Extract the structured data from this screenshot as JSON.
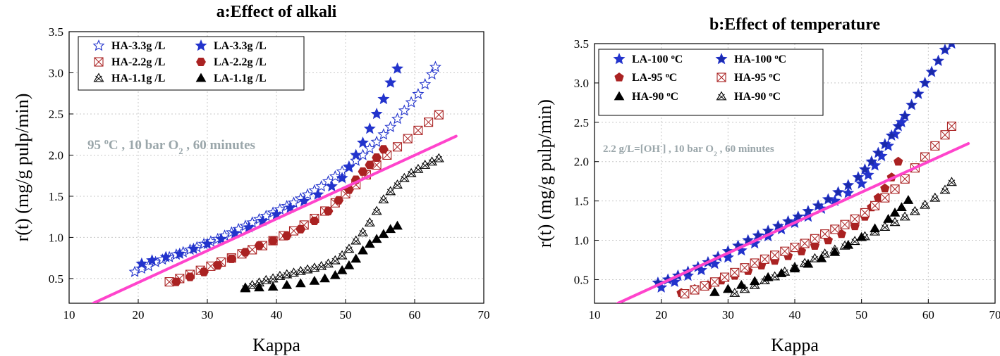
{
  "chart_data": [
    {
      "type": "scatter",
      "title": "a:Effect of alkali",
      "xlabel": "Kappa",
      "ylabel": "r(t) (mg/g pulp/min)",
      "xlim": [
        10,
        70
      ],
      "ylim": [
        0.2,
        3.5
      ],
      "xticks": [
        10,
        20,
        30,
        40,
        50,
        60,
        70
      ],
      "yticks": [
        0.5,
        1.0,
        1.5,
        2.0,
        2.5,
        3.0,
        3.5
      ],
      "grid": true,
      "legend_position": "top-left",
      "annotation": {
        "prefix": "95 ",
        "sup": "o",
        "mid": "C , 10 bar O",
        "sub": "2",
        "suffix": " , 60 minutes"
      },
      "trend_line": {
        "x": [
          13.5,
          66
        ],
        "y": [
          0.2,
          2.23
        ],
        "color": "#ff44cc"
      },
      "series": [
        {
          "name": "HA-3.3g /L",
          "marker": "star-open",
          "color": "#2233cc",
          "x": [
            19.5,
            20.5,
            21.5,
            22.5,
            23.5,
            24.5,
            25.5,
            26.5,
            27.5,
            28.5,
            29.5,
            30.5,
            31.5,
            32.5,
            33.5,
            34.5,
            35.5,
            36.5,
            37.5,
            38.5,
            39.5,
            40.5,
            41.5,
            42.5,
            43.5,
            44.5,
            45.5,
            46.5,
            47.5,
            48.5,
            49.5,
            50.5,
            51.5,
            52.5,
            53.5,
            54.5,
            55.5,
            56.5,
            57.5,
            58.5,
            59.5,
            60.5,
            61.5,
            62.5,
            63.0
          ],
          "y": [
            0.58,
            0.62,
            0.65,
            0.7,
            0.73,
            0.76,
            0.79,
            0.82,
            0.85,
            0.88,
            0.92,
            0.95,
            0.98,
            1.02,
            1.06,
            1.1,
            1.14,
            1.18,
            1.22,
            1.26,
            1.3,
            1.34,
            1.38,
            1.42,
            1.47,
            1.52,
            1.57,
            1.62,
            1.68,
            1.74,
            1.8,
            1.86,
            1.93,
            2.0,
            2.08,
            2.16,
            2.25,
            2.34,
            2.44,
            2.54,
            2.64,
            2.74,
            2.86,
            2.98,
            3.07
          ]
        },
        {
          "name": "LA-3.3g /L",
          "marker": "star",
          "color": "#2233cc",
          "x": [
            20.5,
            22,
            24,
            26,
            28,
            30,
            32,
            34,
            36,
            38,
            40,
            42,
            44,
            46,
            48,
            49.5,
            50.5,
            51.5,
            52.5,
            53.5,
            54.5,
            55.5,
            56.5,
            57.5
          ],
          "y": [
            0.68,
            0.72,
            0.76,
            0.8,
            0.86,
            0.92,
            0.98,
            1.05,
            1.12,
            1.2,
            1.28,
            1.36,
            1.44,
            1.52,
            1.62,
            1.72,
            1.85,
            2.0,
            2.15,
            2.32,
            2.5,
            2.68,
            2.88,
            3.05
          ]
        },
        {
          "name": "HA-2.2g /L",
          "marker": "square-x",
          "color": "#aa2222",
          "x": [
            24.5,
            26,
            27.5,
            29,
            30.5,
            32,
            33.5,
            35,
            36.5,
            38,
            39.5,
            41,
            42.5,
            44,
            45.5,
            47,
            48.5,
            50,
            51.5,
            53,
            54.5,
            56,
            57.5,
            59,
            60.5,
            62,
            63.5
          ],
          "y": [
            0.46,
            0.5,
            0.55,
            0.6,
            0.65,
            0.7,
            0.75,
            0.8,
            0.85,
            0.9,
            0.96,
            1.02,
            1.08,
            1.15,
            1.23,
            1.32,
            1.42,
            1.53,
            1.64,
            1.76,
            1.88,
            2.0,
            2.1,
            2.2,
            2.3,
            2.4,
            2.49
          ]
        },
        {
          "name": "LA-2.2g /L",
          "marker": "hexagon",
          "color": "#aa2222",
          "x": [
            25.5,
            27.5,
            29.5,
            31.5,
            33.5,
            35.5,
            37.5,
            39.5,
            41.5,
            43.5,
            45.5,
            47.5,
            49,
            50.5,
            51.5,
            52.5,
            53.5,
            54.5,
            55.5
          ],
          "y": [
            0.46,
            0.52,
            0.58,
            0.66,
            0.74,
            0.82,
            0.9,
            0.96,
            1.02,
            1.1,
            1.2,
            1.32,
            1.45,
            1.58,
            1.7,
            1.8,
            1.88,
            1.97,
            2.07
          ]
        },
        {
          "name": "HA-1.1g /L",
          "marker": "triangle-x",
          "color": "#000000",
          "x": [
            35.5,
            36.5,
            37.5,
            38.5,
            39.5,
            40.5,
            41.5,
            42.5,
            43.5,
            44.5,
            45.5,
            46.5,
            47.5,
            48.5,
            49.5,
            50.5,
            51.5,
            52.5,
            53.5,
            54.5,
            55.5,
            56.5,
            57.5,
            58.5,
            59.5,
            60.5,
            61.5,
            62.5,
            63.5
          ],
          "y": [
            0.39,
            0.42,
            0.45,
            0.48,
            0.5,
            0.53,
            0.55,
            0.57,
            0.59,
            0.61,
            0.63,
            0.65,
            0.68,
            0.72,
            0.78,
            0.86,
            0.96,
            1.06,
            1.18,
            1.32,
            1.46,
            1.56,
            1.64,
            1.72,
            1.78,
            1.83,
            1.88,
            1.92,
            1.96
          ]
        },
        {
          "name": "LA-1.1g /L",
          "marker": "triangle",
          "color": "#000000",
          "x": [
            35.5,
            37.5,
            39.5,
            41.5,
            43.5,
            45.5,
            47,
            48.5,
            49.5,
            50.5,
            51.5,
            52.5,
            53.5,
            54.5,
            55.5,
            56.5,
            57.5
          ],
          "y": [
            0.38,
            0.39,
            0.4,
            0.42,
            0.44,
            0.47,
            0.5,
            0.54,
            0.6,
            0.66,
            0.74,
            0.84,
            0.92,
            0.98,
            1.04,
            1.1,
            1.14
          ]
        }
      ]
    },
    {
      "type": "scatter",
      "title": "b:Effect of temperature",
      "xlabel": "Kappa",
      "ylabel": "r(t) (mg/g pulp/min)",
      "xlim": [
        10,
        70
      ],
      "ylim": [
        0.2,
        3.5
      ],
      "xticks": [
        10,
        20,
        30,
        40,
        50,
        60,
        70
      ],
      "yticks": [
        0.5,
        1.0,
        1.5,
        2.0,
        2.5,
        3.0,
        3.5
      ],
      "grid": true,
      "legend_position": "top-left",
      "annotation": {
        "prefix": "2.2 g/L=[OH",
        "sup": "-",
        "mid": "] , 10 bar O",
        "sub": "2",
        "suffix": " , 60 minutes"
      },
      "trend_line": {
        "x": [
          13.5,
          66
        ],
        "y": [
          0.2,
          2.23
        ],
        "color": "#ff44cc"
      },
      "series": [
        {
          "name": "LA-100 °C",
          "label_parts": [
            "LA-100 ",
            "o",
            "C"
          ],
          "marker": "star",
          "color": "#2233cc",
          "x": [
            20,
            22,
            24,
            26,
            28,
            30,
            32,
            34,
            36,
            38,
            40,
            42,
            44,
            46,
            48,
            50,
            51,
            52,
            53,
            54,
            55,
            56
          ],
          "y": [
            0.4,
            0.47,
            0.55,
            0.62,
            0.7,
            0.78,
            0.87,
            0.96,
            1.05,
            1.14,
            1.22,
            1.3,
            1.4,
            1.5,
            1.6,
            1.72,
            1.83,
            1.95,
            2.07,
            2.2,
            2.35,
            2.5
          ]
        },
        {
          "name": "HA-100 °C",
          "label_parts": [
            "HA-100 ",
            "o",
            "C"
          ],
          "marker": "star-dark",
          "color": "#2233cc",
          "x": [
            19.5,
            21,
            22.5,
            24,
            25.5,
            27,
            28.5,
            30,
            31.5,
            33,
            34.5,
            36,
            37.5,
            39,
            40.5,
            42,
            43.5,
            45,
            46.5,
            48,
            49.5,
            50.5,
            51.5,
            52.5,
            53.5,
            54.5,
            55.5,
            56.5,
            57.5,
            58.5,
            59.5,
            60.5,
            61.5,
            62.5,
            63.5
          ],
          "y": [
            0.46,
            0.5,
            0.55,
            0.6,
            0.66,
            0.72,
            0.79,
            0.86,
            0.93,
            1.0,
            1.06,
            1.12,
            1.18,
            1.24,
            1.3,
            1.37,
            1.44,
            1.52,
            1.61,
            1.7,
            1.8,
            1.9,
            2.0,
            2.11,
            2.22,
            2.33,
            2.45,
            2.58,
            2.72,
            2.86,
            3.0,
            3.14,
            3.28,
            3.42,
            3.5
          ]
        },
        {
          "name": "LA-95 °C",
          "label_parts": [
            "LA-95 ",
            "o",
            "C"
          ],
          "marker": "pentagon",
          "color": "#aa2222",
          "x": [
            23,
            25,
            27,
            29,
            31,
            33,
            35,
            37,
            39,
            41,
            43,
            45,
            47,
            49,
            50.5,
            51.5,
            52.5,
            53.5,
            54.5,
            55.5
          ],
          "y": [
            0.33,
            0.38,
            0.43,
            0.49,
            0.55,
            0.61,
            0.68,
            0.74,
            0.8,
            0.86,
            0.93,
            1.0,
            1.08,
            1.18,
            1.3,
            1.42,
            1.54,
            1.66,
            1.8,
            2.0
          ]
        },
        {
          "name": "HA-95 °C",
          "label_parts": [
            "HA-95 ",
            "o",
            "C"
          ],
          "marker": "square-x",
          "color": "#aa2222",
          "x": [
            23.5,
            25,
            26.5,
            28,
            29.5,
            31,
            32.5,
            34,
            35.5,
            37,
            38.5,
            40,
            41.5,
            43,
            44.5,
            46,
            47.5,
            49,
            50.5,
            52,
            53.5,
            55,
            56.5,
            58,
            59.5,
            61,
            62.5,
            63.5
          ],
          "y": [
            0.32,
            0.37,
            0.42,
            0.47,
            0.53,
            0.59,
            0.65,
            0.71,
            0.76,
            0.81,
            0.86,
            0.91,
            0.96,
            1.02,
            1.08,
            1.14,
            1.2,
            1.27,
            1.35,
            1.44,
            1.54,
            1.65,
            1.78,
            1.92,
            2.06,
            2.2,
            2.34,
            2.45
          ]
        },
        {
          "name": "HA-90 °C",
          "label_parts": [
            "HA-90 ",
            "o",
            "C"
          ],
          "marker": "triangle",
          "color": "#000000",
          "x": [
            28,
            30,
            32,
            34,
            36,
            38,
            40,
            42,
            44,
            46,
            48,
            50,
            52,
            54,
            55,
            56,
            57
          ],
          "y": [
            0.34,
            0.38,
            0.43,
            0.48,
            0.53,
            0.58,
            0.64,
            0.7,
            0.77,
            0.85,
            0.94,
            1.04,
            1.15,
            1.27,
            1.35,
            1.42,
            1.51
          ]
        },
        {
          "name": "HA-90 °C",
          "label_parts": [
            "HA-90 ",
            "o",
            "C"
          ],
          "marker": "triangle-x",
          "color": "#000000",
          "x": [
            31,
            32.5,
            34,
            35.5,
            37,
            38.5,
            40,
            41.5,
            43,
            44.5,
            46,
            47.5,
            49,
            50.5,
            52,
            53.5,
            55,
            56.5,
            58,
            59.5,
            61,
            62.5,
            63.5
          ],
          "y": [
            0.33,
            0.38,
            0.43,
            0.49,
            0.54,
            0.6,
            0.66,
            0.71,
            0.77,
            0.83,
            0.88,
            0.93,
            0.99,
            1.05,
            1.11,
            1.17,
            1.23,
            1.3,
            1.37,
            1.45,
            1.54,
            1.64,
            1.74
          ]
        }
      ]
    }
  ]
}
